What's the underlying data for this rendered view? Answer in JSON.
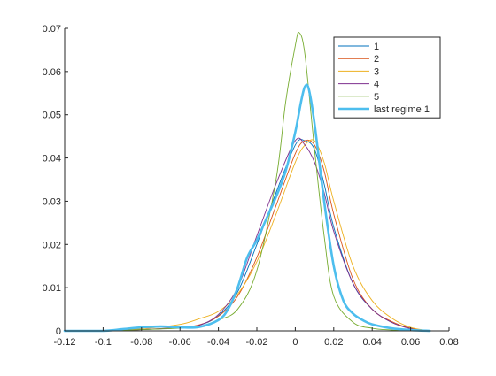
{
  "chart_data": {
    "type": "line",
    "title": "",
    "xlabel": "",
    "ylabel": "",
    "xlim": [
      -0.12,
      0.08
    ],
    "ylim": [
      0,
      0.07
    ],
    "xticks": [
      -0.12,
      -0.1,
      -0.08,
      -0.06,
      -0.04,
      -0.02,
      0,
      0.02,
      0.04,
      0.06,
      0.08
    ],
    "xtick_labels": [
      "-0.12",
      "-0.1",
      "-0.08",
      "-0.06",
      "-0.04",
      "-0.02",
      "0",
      "0.02",
      "0.04",
      "0.06",
      "0.08"
    ],
    "yticks": [
      0,
      0.01,
      0.02,
      0.03,
      0.04,
      0.05,
      0.06,
      0.07
    ],
    "ytick_labels": [
      "0",
      "0.01",
      "0.02",
      "0.03",
      "0.04",
      "0.05",
      "0.06",
      "0.07"
    ],
    "grid": false,
    "legend_position": "top-right",
    "series": [
      {
        "name": "1",
        "color": "#0072BD",
        "bold": false,
        "x": [
          -0.12,
          -0.1,
          -0.08,
          -0.06,
          -0.05,
          -0.04,
          -0.03,
          -0.02,
          -0.01,
          0,
          0.005,
          0.01,
          0.015,
          0.02,
          0.03,
          0.04,
          0.05,
          0.06,
          0.07
        ],
        "y": [
          0,
          0,
          0.0003,
          0.0007,
          0.0013,
          0.0035,
          0.009,
          0.02,
          0.032,
          0.043,
          0.044,
          0.042,
          0.034,
          0.024,
          0.011,
          0.005,
          0.002,
          0.0006,
          0
        ]
      },
      {
        "name": "2",
        "color": "#D95319",
        "bold": false,
        "x": [
          -0.12,
          -0.1,
          -0.08,
          -0.06,
          -0.05,
          -0.04,
          -0.03,
          -0.02,
          -0.01,
          0,
          0.005,
          0.01,
          0.015,
          0.02,
          0.03,
          0.04,
          0.05,
          0.06,
          0.07
        ],
        "y": [
          0,
          0,
          0.0003,
          0.0008,
          0.0014,
          0.0034,
          0.008,
          0.017,
          0.029,
          0.041,
          0.044,
          0.043,
          0.037,
          0.027,
          0.012,
          0.005,
          0.0022,
          0.0006,
          0
        ]
      },
      {
        "name": "3",
        "color": "#EDB120",
        "bold": false,
        "x": [
          -0.12,
          -0.1,
          -0.08,
          -0.06,
          -0.05,
          -0.04,
          -0.03,
          -0.02,
          -0.01,
          0,
          0.005,
          0.01,
          0.015,
          0.02,
          0.03,
          0.04,
          0.05,
          0.06,
          0.07
        ],
        "y": [
          0,
          0,
          0.0005,
          0.0015,
          0.0028,
          0.0045,
          0.0085,
          0.016,
          0.027,
          0.039,
          0.043,
          0.044,
          0.039,
          0.03,
          0.015,
          0.007,
          0.003,
          0.0008,
          0
        ]
      },
      {
        "name": "4",
        "color": "#7E2F8E",
        "bold": false,
        "x": [
          -0.12,
          -0.1,
          -0.08,
          -0.06,
          -0.05,
          -0.04,
          -0.03,
          -0.02,
          -0.01,
          0,
          0.005,
          0.01,
          0.015,
          0.02,
          0.03,
          0.04,
          0.05,
          0.06,
          0.07
        ],
        "y": [
          0,
          0,
          0.0003,
          0.0007,
          0.0013,
          0.0038,
          0.01,
          0.022,
          0.034,
          0.044,
          0.043,
          0.039,
          0.032,
          0.023,
          0.011,
          0.005,
          0.002,
          0.0005,
          0
        ]
      },
      {
        "name": "5",
        "color": "#77AC30",
        "bold": false,
        "x": [
          -0.12,
          -0.1,
          -0.08,
          -0.06,
          -0.05,
          -0.04,
          -0.03,
          -0.02,
          -0.01,
          -0.005,
          0,
          0.002,
          0.005,
          0.01,
          0.015,
          0.02,
          0.03,
          0.04,
          0.05,
          0.06,
          0.07
        ],
        "y": [
          0,
          0,
          0.0003,
          0.0006,
          0.0009,
          0.0025,
          0.005,
          0.014,
          0.035,
          0.053,
          0.066,
          0.069,
          0.064,
          0.042,
          0.022,
          0.008,
          0.002,
          0.0006,
          0.0002,
          0,
          0
        ]
      },
      {
        "name": "last regime 1",
        "color": "#4DBEEE",
        "bold": true,
        "x": [
          -0.12,
          -0.1,
          -0.09,
          -0.08,
          -0.07,
          -0.06,
          -0.05,
          -0.04,
          -0.035,
          -0.03,
          -0.025,
          -0.02,
          -0.015,
          -0.01,
          -0.005,
          0,
          0.003,
          0.005,
          0.007,
          0.01,
          0.015,
          0.02,
          0.025,
          0.03,
          0.035,
          0.04,
          0.05,
          0.06,
          0.07
        ],
        "y": [
          0,
          0,
          0.0004,
          0.0008,
          0.001,
          0.0008,
          0.0009,
          0.0025,
          0.005,
          0.01,
          0.017,
          0.021,
          0.026,
          0.031,
          0.037,
          0.046,
          0.053,
          0.0565,
          0.056,
          0.048,
          0.03,
          0.015,
          0.007,
          0.004,
          0.0025,
          0.0015,
          0.0006,
          0.0002,
          0
        ]
      }
    ]
  }
}
